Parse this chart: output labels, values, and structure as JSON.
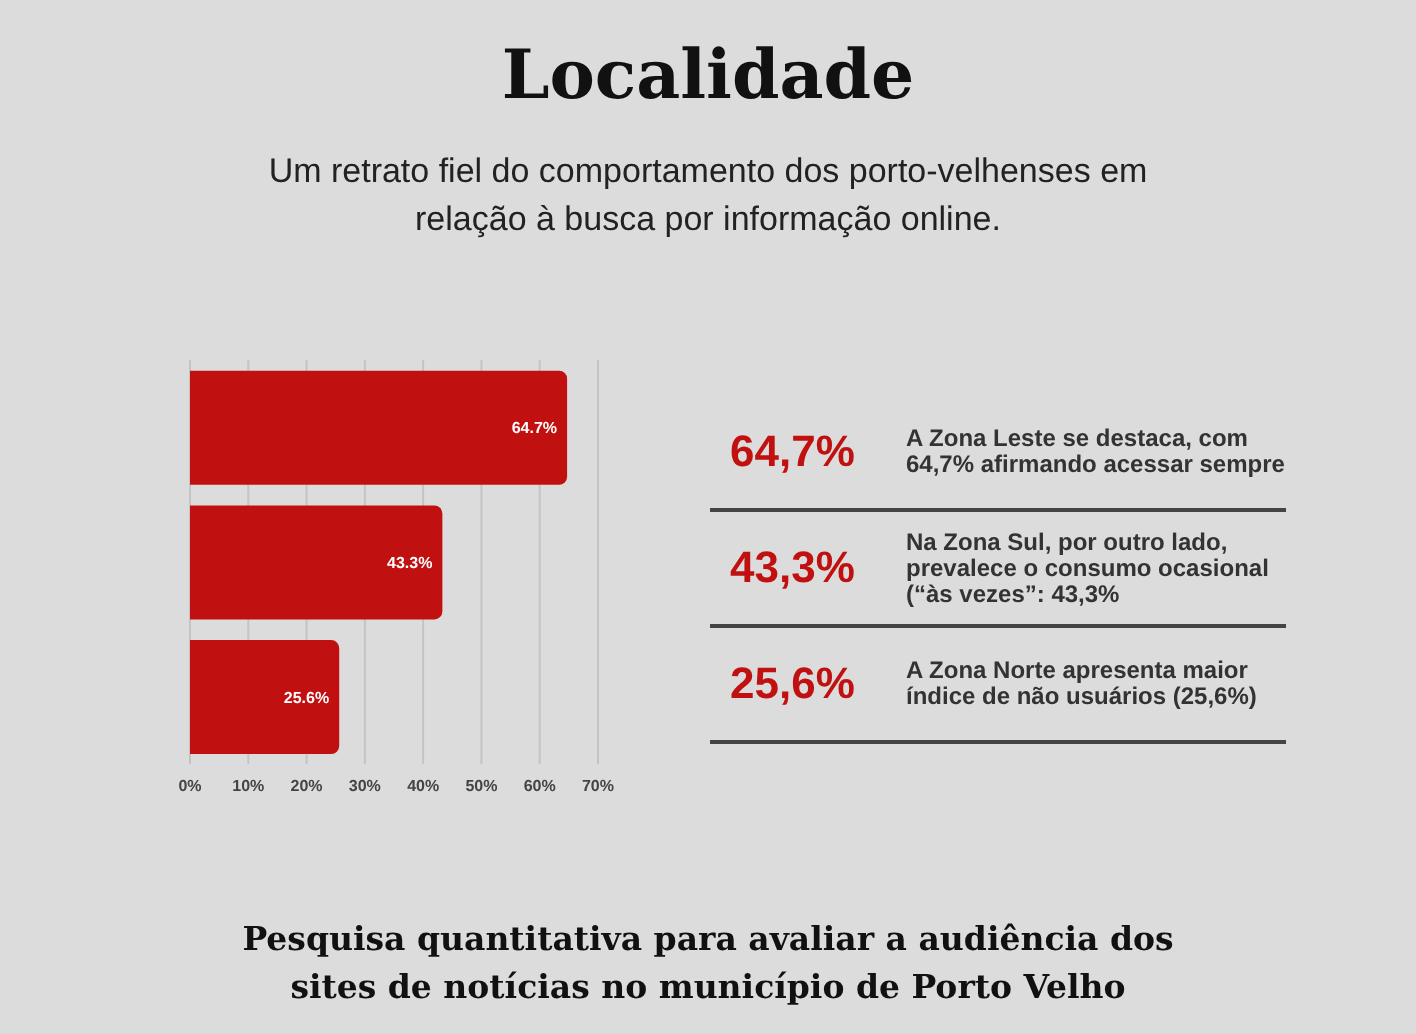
{
  "chart_data": {
    "type": "bar",
    "orientation": "horizontal",
    "title": "Localidade",
    "subtitle": "Um retrato fiel do comportamento dos porto-velhenses em relação à busca por informação online.",
    "categories": [
      null,
      null,
      null
    ],
    "values": [
      64.7,
      43.3,
      25.6
    ],
    "value_labels": [
      "64.7%",
      "43.3%",
      "25.6%"
    ],
    "color": "#c0100f",
    "xlim": [
      0,
      70
    ],
    "xticks": [
      {
        "value": 0,
        "label": "0%"
      },
      {
        "value": 10,
        "label": "10%"
      },
      {
        "value": 20,
        "label": "20%"
      },
      {
        "value": 30,
        "label": "30%"
      },
      {
        "value": 40,
        "label": "40%"
      },
      {
        "value": 50,
        "label": "50%"
      },
      {
        "value": 60,
        "label": "60%"
      },
      {
        "value": 70,
        "label": "70%"
      }
    ],
    "grid": "x",
    "annotations": [
      "64,7%",
      "A Zona Leste se destaca, com 64,7% afirmando acessar sempre",
      "43,3%",
      "Na Zona Sul, por outro lado, prevalece o consumo ocasional (“às vezes”: 43,3%",
      "25,6%",
      "A Zona Norte apresenta maior índice de não usuários (25,6%)",
      "Pesquisa quantitativa para avaliar a audiência dos sites de notícias no município de Porto Velho"
    ]
  }
}
